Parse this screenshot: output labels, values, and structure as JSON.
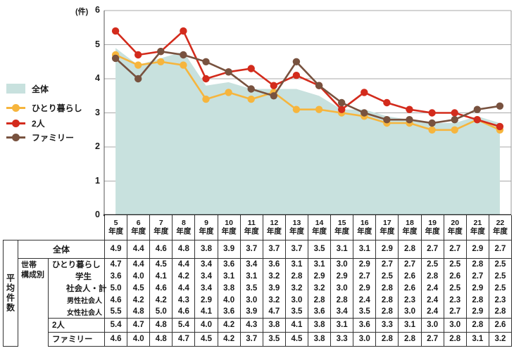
{
  "chart": {
    "unit_label": "(件)",
    "y_ticks": [
      0,
      1,
      2,
      3,
      4,
      5,
      6
    ],
    "grid_color": "#a9a9a9",
    "left_axis_color": "#555555",
    "right_border_color": "#999999",
    "baseline_color": "#1a1a1a"
  },
  "legend": {
    "items": [
      {
        "label": "全体",
        "marker": "area-swatch",
        "color": "#c8e1de"
      },
      {
        "label": "ひとり暮らし",
        "marker": "line-dot",
        "color": "#f6b53d"
      },
      {
        "label": "2人",
        "marker": "line-dot",
        "color": "#d32b1c"
      },
      {
        "label": "ファミリー",
        "marker": "line-dot",
        "color": "#78523f"
      }
    ]
  },
  "chart_data": {
    "type": "line",
    "categories": [
      "5年度",
      "6年度",
      "7年度",
      "8年度",
      "9年度",
      "10年度",
      "11年度",
      "12年度",
      "13年度",
      "14年度",
      "15年度",
      "16年度",
      "17年度",
      "18年度",
      "19年度",
      "20年度",
      "21年度",
      "22年度"
    ],
    "x_tick_numbers": [
      "5",
      "6",
      "7",
      "8",
      "9",
      "10",
      "11",
      "12",
      "13",
      "14",
      "15",
      "16",
      "17",
      "18",
      "19",
      "20",
      "21",
      "22"
    ],
    "x_tick_suffix": "年度",
    "ylabel": "(件)",
    "ylim": [
      0,
      6
    ],
    "grid": true,
    "legend_position": "left",
    "series": [
      {
        "name": "全体",
        "type": "area",
        "color": "#c8e1de",
        "values": [
          4.9,
          4.4,
          4.6,
          4.8,
          3.8,
          3.9,
          3.7,
          3.7,
          3.7,
          3.5,
          3.1,
          3.1,
          2.9,
          2.8,
          2.7,
          2.7,
          2.9,
          2.7
        ]
      },
      {
        "name": "ひとり暮らし",
        "type": "line",
        "color": "#f6b53d",
        "values": [
          4.7,
          4.4,
          4.5,
          4.4,
          3.4,
          3.6,
          3.4,
          3.6,
          3.1,
          3.1,
          3.0,
          2.9,
          2.7,
          2.7,
          2.5,
          2.5,
          2.8,
          2.5
        ]
      },
      {
        "name": "2人",
        "type": "line",
        "color": "#d32b1c",
        "values": [
          5.4,
          4.7,
          4.8,
          5.4,
          4.0,
          4.2,
          4.3,
          3.8,
          4.1,
          3.8,
          3.1,
          3.6,
          3.3,
          3.1,
          3.0,
          3.0,
          2.8,
          2.6
        ]
      },
      {
        "name": "ファミリー",
        "type": "line",
        "color": "#78523f",
        "values": [
          4.6,
          4.0,
          4.8,
          4.7,
          4.5,
          4.2,
          3.7,
          3.5,
          4.5,
          3.8,
          3.3,
          3.0,
          2.8,
          2.8,
          2.7,
          2.8,
          3.1,
          3.2
        ]
      }
    ]
  },
  "table": {
    "corner_label": "平均件数",
    "group_label_lines": [
      "世帯",
      "構成別"
    ],
    "rows": [
      {
        "label": "全体",
        "kind": "main",
        "values": [
          4.9,
          4.4,
          4.6,
          4.8,
          3.8,
          3.9,
          3.7,
          3.7,
          3.7,
          3.5,
          3.1,
          3.1,
          2.9,
          2.8,
          2.7,
          2.7,
          2.9,
          2.7
        ]
      },
      {
        "label": "ひとり暮らし",
        "kind": "mid",
        "indent": 0,
        "values": [
          4.7,
          4.4,
          4.5,
          4.4,
          3.4,
          3.6,
          3.4,
          3.6,
          3.1,
          3.1,
          3.0,
          2.9,
          2.7,
          2.7,
          2.5,
          2.5,
          2.8,
          2.5
        ]
      },
      {
        "label": "学生",
        "kind": "mid",
        "indent": 1,
        "values": [
          3.6,
          4.0,
          4.1,
          4.2,
          3.4,
          3.1,
          3.1,
          3.2,
          2.8,
          2.9,
          2.9,
          2.7,
          2.5,
          2.6,
          2.8,
          2.6,
          2.7,
          2.5
        ]
      },
      {
        "label": "社会人・計",
        "kind": "mid",
        "indent": 2,
        "values": [
          5.0,
          4.5,
          4.6,
          4.4,
          3.4,
          3.8,
          3.5,
          3.9,
          3.2,
          3.2,
          3.0,
          2.9,
          2.8,
          2.6,
          2.4,
          2.5,
          2.9,
          2.5
        ]
      },
      {
        "label": "男性社会人",
        "kind": "mid",
        "indent": 3,
        "values": [
          4.6,
          4.2,
          4.2,
          4.3,
          2.9,
          4.0,
          3.0,
          3.2,
          3.0,
          2.8,
          2.8,
          2.4,
          2.8,
          2.3,
          2.4,
          2.3,
          2.8,
          2.3
        ]
      },
      {
        "label": "女性社会人",
        "kind": "mid",
        "indent": 3,
        "values": [
          5.5,
          4.8,
          5.0,
          4.6,
          4.1,
          3.6,
          3.9,
          4.7,
          3.5,
          3.6,
          3.4,
          3.5,
          2.8,
          3.0,
          2.4,
          2.7,
          2.9,
          2.8
        ]
      },
      {
        "label": "2人",
        "kind": "bot",
        "indent": 0,
        "values": [
          5.4,
          4.7,
          4.8,
          5.4,
          4.0,
          4.2,
          4.3,
          3.8,
          4.1,
          3.8,
          3.1,
          3.6,
          3.3,
          3.1,
          3.0,
          3.0,
          2.8,
          2.6
        ]
      },
      {
        "label": "ファミリー",
        "kind": "bot",
        "indent": 0,
        "values": [
          4.6,
          4.0,
          4.8,
          4.7,
          4.5,
          4.2,
          3.7,
          3.5,
          4.5,
          3.8,
          3.3,
          3.0,
          2.8,
          2.8,
          2.7,
          2.8,
          3.1,
          3.2
        ]
      }
    ]
  }
}
